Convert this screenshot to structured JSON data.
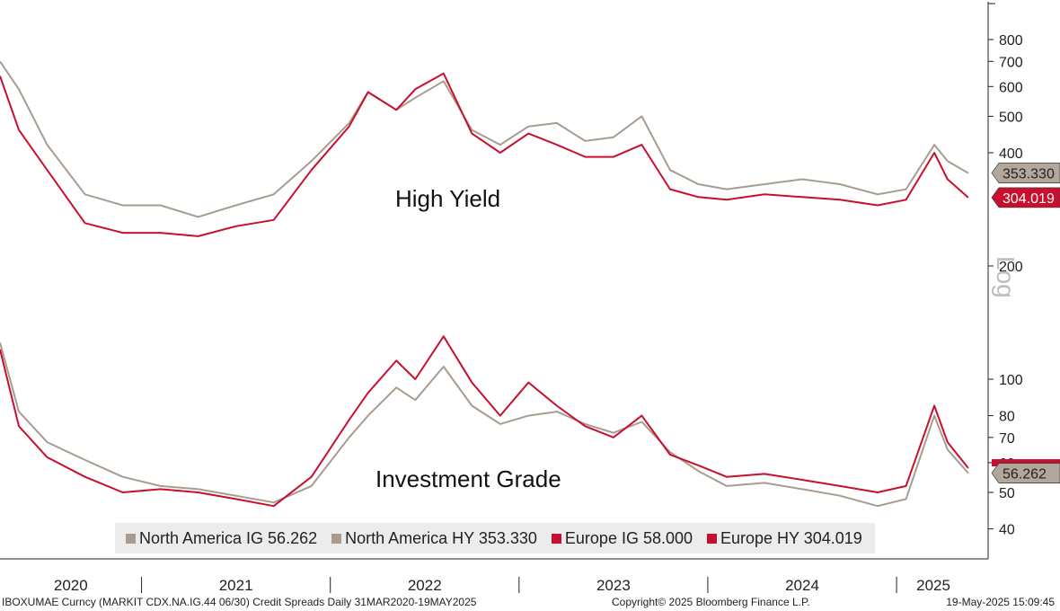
{
  "chart_data": {
    "type": "line",
    "scale": "log",
    "ylim": [
      35,
      900
    ],
    "y_ticks": [
      40,
      50,
      60,
      70,
      80,
      100,
      200,
      400,
      500,
      600,
      700,
      800
    ],
    "x_labels": [
      "2020",
      "2021",
      "2022",
      "2023",
      "2024",
      "2025"
    ],
    "grid": false,
    "legend_position": "bottom",
    "annotations": {
      "high_yield": "High Yield",
      "investment_grade": "Investment Grade",
      "axis_scale": "Log"
    },
    "last_value_tags": [
      "353.330",
      "304.019",
      "56.262"
    ],
    "series": [
      {
        "name": "North America IG",
        "last": "56.262",
        "color": "#a89c90",
        "x": [
          2020.25,
          2020.35,
          2020.5,
          2020.7,
          2020.9,
          2021.1,
          2021.3,
          2021.5,
          2021.7,
          2021.9,
          2022.1,
          2022.2,
          2022.35,
          2022.45,
          2022.6,
          2022.75,
          2022.9,
          2023.05,
          2023.2,
          2023.35,
          2023.5,
          2023.65,
          2023.8,
          2023.95,
          2024.1,
          2024.3,
          2024.5,
          2024.7,
          2024.9,
          2025.05,
          2025.2,
          2025.27,
          2025.38
        ],
        "values": [
          125,
          82,
          68,
          61,
          55,
          52,
          51,
          49,
          47,
          52,
          70,
          80,
          95,
          88,
          108,
          85,
          76,
          80,
          82,
          76,
          72,
          77,
          64,
          57,
          52,
          53,
          51,
          49,
          46,
          48,
          80,
          65,
          56.262
        ]
      },
      {
        "name": "North America HY",
        "last": "353.330",
        "color": "#a89c90",
        "x": [
          2020.25,
          2020.35,
          2020.5,
          2020.7,
          2020.9,
          2021.1,
          2021.3,
          2021.5,
          2021.7,
          2021.9,
          2022.1,
          2022.2,
          2022.35,
          2022.45,
          2022.6,
          2022.75,
          2022.9,
          2023.05,
          2023.2,
          2023.35,
          2023.5,
          2023.65,
          2023.8,
          2023.95,
          2024.1,
          2024.3,
          2024.5,
          2024.7,
          2024.9,
          2025.05,
          2025.2,
          2025.27,
          2025.38
        ],
        "values": [
          700,
          590,
          420,
          310,
          290,
          290,
          270,
          290,
          310,
          380,
          480,
          580,
          520,
          560,
          620,
          460,
          420,
          470,
          480,
          430,
          440,
          500,
          360,
          330,
          320,
          330,
          340,
          330,
          310,
          320,
          420,
          380,
          353.33
        ]
      },
      {
        "name": "Europe IG",
        "last": "58.000",
        "color": "#c8102e",
        "x": [
          2020.25,
          2020.35,
          2020.5,
          2020.7,
          2020.9,
          2021.1,
          2021.3,
          2021.5,
          2021.7,
          2021.9,
          2022.1,
          2022.2,
          2022.35,
          2022.45,
          2022.6,
          2022.75,
          2022.9,
          2023.05,
          2023.2,
          2023.35,
          2023.5,
          2023.65,
          2023.8,
          2023.95,
          2024.1,
          2024.3,
          2024.5,
          2024.7,
          2024.9,
          2025.05,
          2025.2,
          2025.27,
          2025.38
        ],
        "values": [
          120,
          75,
          62,
          55,
          50,
          51,
          50,
          48,
          46,
          55,
          78,
          92,
          112,
          100,
          130,
          98,
          80,
          98,
          85,
          75,
          70,
          80,
          63,
          59,
          55,
          56,
          54,
          52,
          50,
          52,
          85,
          68,
          58.0
        ]
      },
      {
        "name": "Europe HY",
        "last": "304.019",
        "color": "#c8102e",
        "x": [
          2020.25,
          2020.35,
          2020.5,
          2020.7,
          2020.9,
          2021.1,
          2021.3,
          2021.5,
          2021.7,
          2021.9,
          2022.1,
          2022.2,
          2022.35,
          2022.45,
          2022.6,
          2022.75,
          2022.9,
          2023.05,
          2023.2,
          2023.35,
          2023.5,
          2023.65,
          2023.8,
          2023.95,
          2024.1,
          2024.3,
          2024.5,
          2024.7,
          2024.9,
          2025.05,
          2025.2,
          2025.27,
          2025.38
        ],
        "values": [
          640,
          460,
          360,
          260,
          245,
          245,
          240,
          255,
          265,
          360,
          470,
          580,
          520,
          590,
          650,
          450,
          400,
          450,
          420,
          390,
          390,
          420,
          320,
          305,
          300,
          310,
          305,
          300,
          290,
          300,
          400,
          340,
          304.019
        ]
      }
    ]
  },
  "legend": [
    {
      "label": "North America IG 56.262",
      "color": "#a89c90"
    },
    {
      "label": "North America HY 353.330",
      "color": "#a89c90"
    },
    {
      "label": "Europe IG 58.000",
      "color": "#c8102e"
    },
    {
      "label": "Europe HY 304.019",
      "color": "#c8102e"
    }
  ],
  "footer": {
    "left": "IBOXUMAE Curncy (MARKIT CDX.NA.IG.44 06/30) Credit Spreads  Daily 31MAR2020-19MAY2025",
    "center": "Copyright© 2025 Bloomberg Finance L.P.",
    "right": "19-May-2025 15:09:45"
  }
}
